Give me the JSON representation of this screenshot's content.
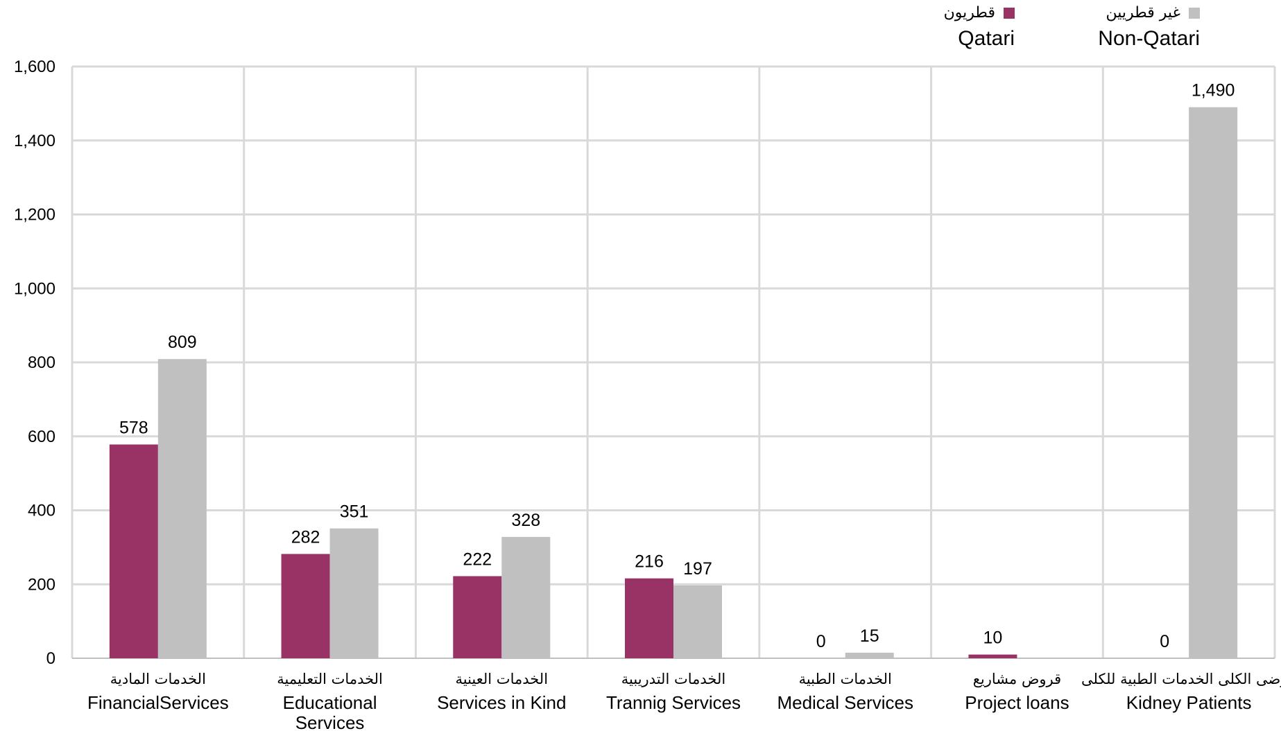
{
  "legend": {
    "qatari_ar": "قطريون",
    "qatari_en": "Qatari",
    "nonqatari_ar": "غير قطريين",
    "nonqatari_en": "Non-Qatari"
  },
  "chart_data": {
    "type": "bar",
    "categories": [
      {
        "ar": "الخدمات  المادية",
        "en": [
          "FinancialServices"
        ]
      },
      {
        "ar": "الخدمات التعليمية",
        "en": [
          "Educational",
          "Services"
        ]
      },
      {
        "ar": "الخدمات العينية",
        "en": [
          "Services in Kind"
        ]
      },
      {
        "ar": "الخدمات التدريبية",
        "en": [
          "Trannig Services"
        ]
      },
      {
        "ar": "الخدمات الطبية",
        "en": [
          "Medical Services"
        ]
      },
      {
        "ar": "قروض مشاريع",
        "en": [
          "Project loans"
        ]
      },
      {
        "ar": "مرضى الكلى الخدمات الطبية للكلى",
        "en": [
          "Kidney Patients"
        ]
      }
    ],
    "series": [
      {
        "name": "Qatari",
        "color": "#993366",
        "values": [
          578,
          282,
          222,
          216,
          0,
          10,
          0
        ],
        "labels": [
          "578",
          "282",
          "222",
          "216",
          "0",
          "10",
          "0"
        ]
      },
      {
        "name": "Non-Qatari",
        "color": "#c0c0c0",
        "values": [
          809,
          351,
          328,
          197,
          15,
          null,
          1490
        ],
        "labels": [
          "809",
          "351",
          "328",
          "197",
          "15",
          "",
          "1,490"
        ]
      }
    ],
    "ylim": [
      0,
      1600
    ],
    "yticks": [
      0,
      200,
      400,
      600,
      800,
      1000,
      1200,
      1400,
      1600
    ],
    "ytick_labels": [
      "0",
      "200",
      "400",
      "600",
      "800",
      "1,000",
      "1,200",
      "1,400",
      "1,600"
    ],
    "grid": true,
    "legend_position": "top-right",
    "colors": {
      "qatari": "#993366",
      "nonqatari": "#c0c0c0",
      "grid": "#d9d9d9",
      "axis": "#bfbfbf"
    }
  }
}
